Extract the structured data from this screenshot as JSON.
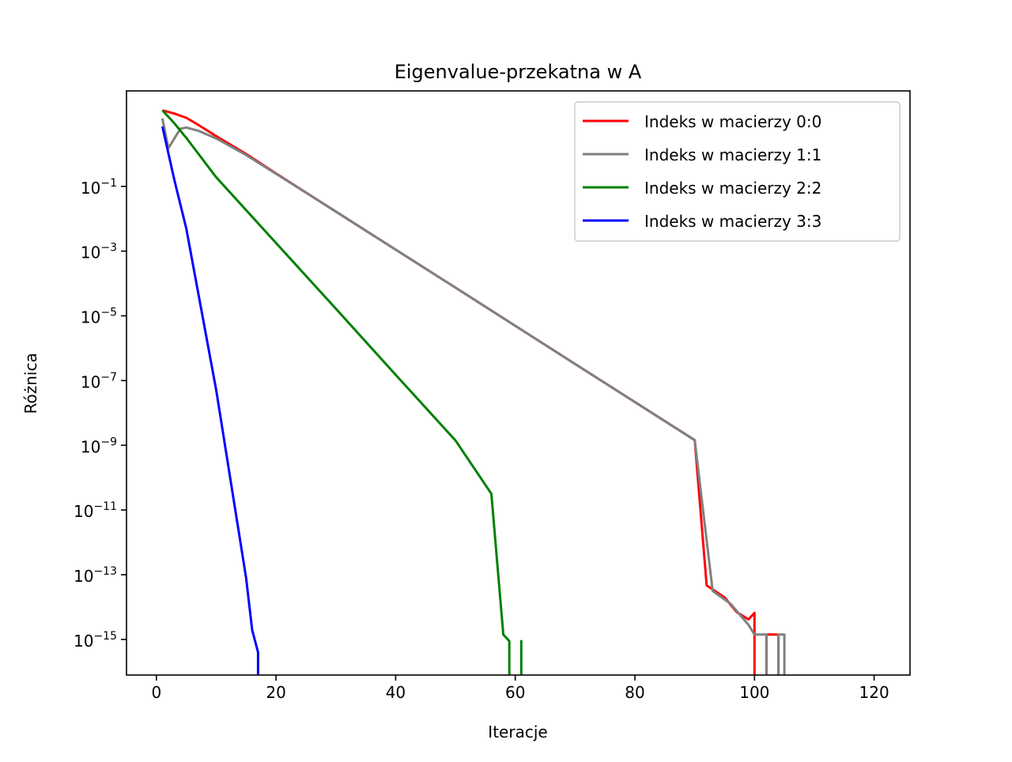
{
  "chart_data": {
    "type": "line",
    "title": "Eigenvalue-przekatna w A",
    "xlabel": "Iteracje",
    "ylabel": "Różnica",
    "xlim": [
      -5,
      126
    ],
    "ylim_log10": [
      -16.1,
      1.95
    ],
    "yscale": "log",
    "x_ticks": [
      0,
      20,
      40,
      60,
      80,
      100,
      120
    ],
    "y_tick_exponents": [
      -1,
      -3,
      -5,
      -7,
      -9,
      -11,
      -13,
      -15
    ],
    "y_tick_base": "10",
    "grid": false,
    "legend_position": "top-right",
    "series": [
      {
        "name": "Indeks w macierzy 0:0",
        "color": "#ff0000",
        "points": [
          [
            1,
            1.35
          ],
          [
            3,
            1.25
          ],
          [
            5,
            1.12
          ],
          [
            7,
            0.9
          ],
          [
            10,
            0.55
          ],
          [
            15,
            0.0
          ],
          [
            20,
            -0.6
          ],
          [
            30,
            -1.78
          ],
          [
            50,
            -4.13
          ],
          [
            70,
            -6.49
          ],
          [
            90,
            -8.84
          ],
          [
            92,
            -13.33
          ],
          [
            95,
            -13.7
          ],
          [
            97,
            -14.15
          ],
          [
            99,
            -14.38
          ],
          [
            100,
            -14.18
          ],
          [
            100,
            -16.5
          ],
          [
            100,
            -16.5
          ],
          [
            102,
            -16.5
          ],
          [
            102,
            -14.85
          ],
          [
            104,
            -14.85
          ],
          [
            104,
            -16.5
          ]
        ]
      },
      {
        "name": "Indeks w macierzy 1:1",
        "color": "#808080",
        "points": [
          [
            1,
            1.1
          ],
          [
            2,
            0.18
          ],
          [
            3,
            0.48
          ],
          [
            4,
            0.78
          ],
          [
            5,
            0.82
          ],
          [
            7,
            0.72
          ],
          [
            10,
            0.48
          ],
          [
            15,
            -0.03
          ],
          [
            20,
            -0.61
          ],
          [
            30,
            -1.78
          ],
          [
            50,
            -4.13
          ],
          [
            70,
            -6.49
          ],
          [
            90,
            -8.84
          ],
          [
            93,
            -13.5
          ],
          [
            96,
            -13.9
          ],
          [
            99,
            -14.55
          ],
          [
            100,
            -14.85
          ],
          [
            102,
            -14.85
          ],
          [
            102,
            -16.5
          ],
          [
            102,
            -16.5
          ],
          [
            104,
            -16.5
          ],
          [
            104,
            -14.85
          ],
          [
            105,
            -14.85
          ],
          [
            105,
            -16.5
          ]
        ]
      },
      {
        "name": "Indeks w macierzy 2:2",
        "color": "#008000",
        "points": [
          [
            1,
            1.35
          ],
          [
            3,
            0.95
          ],
          [
            5,
            0.5
          ],
          [
            10,
            -0.72
          ],
          [
            20,
            -2.75
          ],
          [
            30,
            -4.78
          ],
          [
            40,
            -6.82
          ],
          [
            50,
            -8.85
          ],
          [
            56,
            -10.5
          ],
          [
            58,
            -14.85
          ],
          [
            59,
            -15.05
          ],
          [
            59,
            -16.5
          ],
          [
            59,
            -16.5
          ],
          [
            61,
            -16.5
          ],
          [
            61,
            -15.05
          ],
          [
            61,
            -16.5
          ]
        ]
      },
      {
        "name": "Indeks w macierzy 3:3",
        "color": "#0000ff",
        "points": [
          [
            1,
            0.85
          ],
          [
            3,
            -0.8
          ],
          [
            5,
            -2.3
          ],
          [
            10,
            -7.3
          ],
          [
            15,
            -13.1
          ],
          [
            16,
            -14.7
          ],
          [
            17,
            -15.4
          ],
          [
            17,
            -16.5
          ]
        ]
      }
    ]
  }
}
